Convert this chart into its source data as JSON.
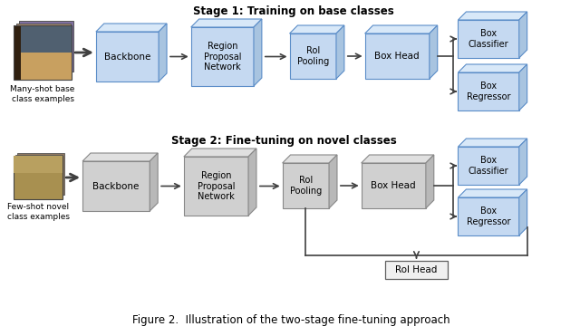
{
  "title1": "Stage 1: Training on base classes",
  "title2": "Stage 2: Fine-tuning on novel classes",
  "caption": "Figure 2.  Illustration of the two-stage fine-tuning approach",
  "stage1_label": "Many-shot base\nclass examples",
  "stage2_label": "Few-shot novel\nclass examples",
  "blue_color": "#c5d9f1",
  "blue_edge": "#5b8dc8",
  "blue_top": "#d8e8f8",
  "blue_side": "#a8c4e0",
  "gray_color": "#d0d0d0",
  "gray_edge": "#888888",
  "gray_top": "#e0e0e0",
  "gray_side": "#b8b8b8",
  "roi_head_color": "#f0f0f0",
  "roi_head_edge": "#606060",
  "bg_color": "#ffffff",
  "arrow_color": "#404040"
}
